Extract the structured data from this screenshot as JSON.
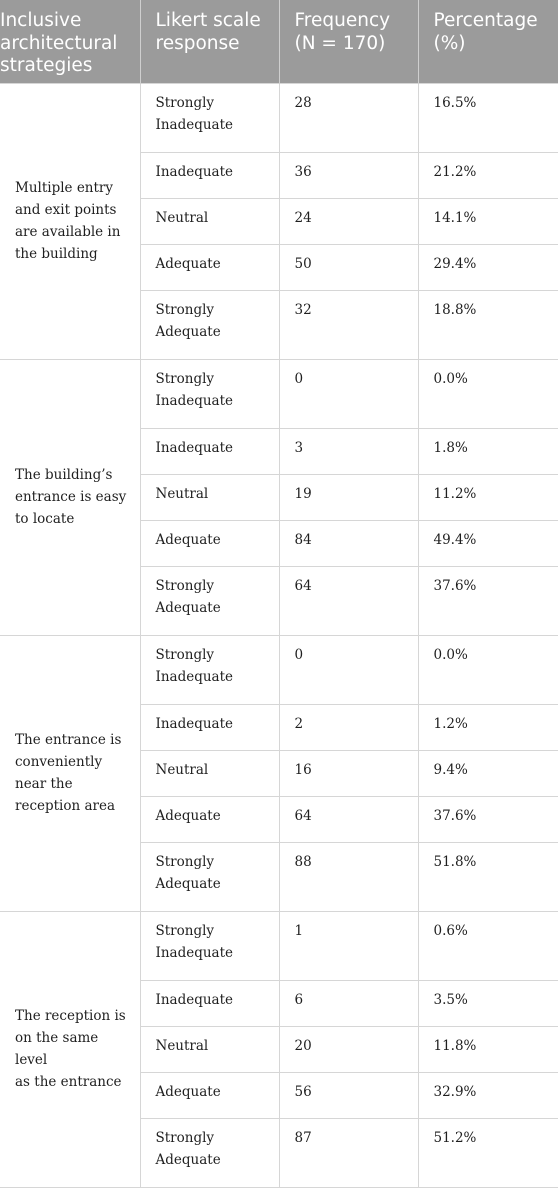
{
  "table": {
    "headers": {
      "strategy": [
        "Inclusive",
        "architectural",
        "strategies"
      ],
      "likert": [
        "Likert scale",
        "response"
      ],
      "frequency": [
        "Frequency",
        "(N = 170)"
      ],
      "percentage": [
        "Percentage",
        "(%)"
      ]
    },
    "groups": [
      {
        "strategy": [
          "Multiple entry",
          "and exit points",
          "are available in",
          "the building"
        ],
        "rows": [
          {
            "response": [
              "Strongly",
              "Inadequate"
            ],
            "frequency": "28",
            "percentage": "16.5%"
          },
          {
            "response": [
              "Inadequate"
            ],
            "frequency": "36",
            "percentage": "21.2%"
          },
          {
            "response": [
              "Neutral"
            ],
            "frequency": "24",
            "percentage": "14.1%"
          },
          {
            "response": [
              "Adequate"
            ],
            "frequency": "50",
            "percentage": "29.4%"
          },
          {
            "response": [
              "Strongly",
              "Adequate"
            ],
            "frequency": "32",
            "percentage": "18.8%"
          }
        ]
      },
      {
        "strategy": [
          "The building’s",
          "entrance is easy",
          "to locate"
        ],
        "rows": [
          {
            "response": [
              "Strongly",
              "Inadequate"
            ],
            "frequency": "0",
            "percentage": "0.0%"
          },
          {
            "response": [
              "Inadequate"
            ],
            "frequency": "3",
            "percentage": "1.8%"
          },
          {
            "response": [
              "Neutral"
            ],
            "frequency": "19",
            "percentage": "11.2%"
          },
          {
            "response": [
              "Adequate"
            ],
            "frequency": "84",
            "percentage": "49.4%"
          },
          {
            "response": [
              "Strongly",
              "Adequate"
            ],
            "frequency": "64",
            "percentage": "37.6%"
          }
        ]
      },
      {
        "strategy": [
          "The entrance is",
          "conveniently",
          "near the",
          "reception area"
        ],
        "rows": [
          {
            "response": [
              "Strongly",
              "Inadequate"
            ],
            "frequency": "0",
            "percentage": "0.0%"
          },
          {
            "response": [
              "Inadequate"
            ],
            "frequency": "2",
            "percentage": "1.2%"
          },
          {
            "response": [
              "Neutral"
            ],
            "frequency": "16",
            "percentage": "9.4%"
          },
          {
            "response": [
              "Adequate"
            ],
            "frequency": "64",
            "percentage": "37.6%"
          },
          {
            "response": [
              "Strongly",
              "Adequate"
            ],
            "frequency": "88",
            "percentage": "51.8%"
          }
        ]
      },
      {
        "strategy": [
          "The reception is",
          "on the same level",
          "as the entrance"
        ],
        "rows": [
          {
            "response": [
              "Strongly",
              "Inadequate"
            ],
            "frequency": "1",
            "percentage": "0.6%"
          },
          {
            "response": [
              "Inadequate"
            ],
            "frequency": "6",
            "percentage": "3.5%"
          },
          {
            "response": [
              "Neutral"
            ],
            "frequency": "20",
            "percentage": "11.8%"
          },
          {
            "response": [
              "Adequate"
            ],
            "frequency": "56",
            "percentage": "32.9%"
          },
          {
            "response": [
              "Strongly",
              "Adequate"
            ],
            "frequency": "87",
            "percentage": "51.2%"
          }
        ]
      }
    ]
  },
  "colors": {
    "header_bg": "#9b9b9b",
    "header_text": "#ffffff",
    "grid": "#d6d6d6",
    "body_text": "#1f1f1f"
  }
}
